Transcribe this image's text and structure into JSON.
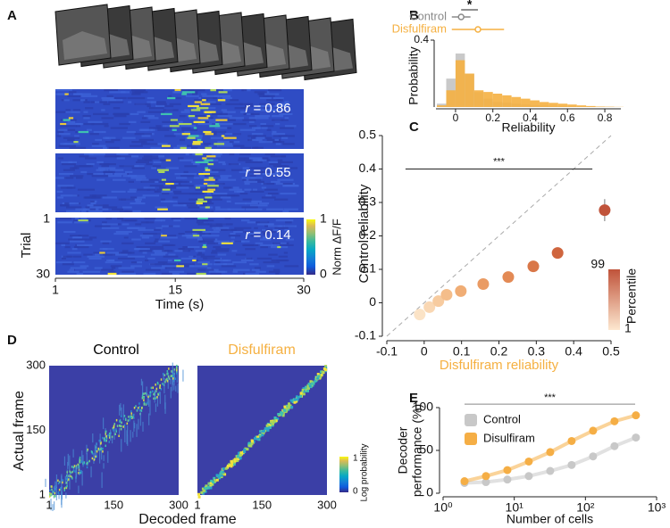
{
  "panel_labels": [
    "A",
    "B",
    "C",
    "D",
    "E"
  ],
  "panel_a": {
    "r_labels": [
      {
        "symbol": "r",
        "text": "= 0.86"
      },
      {
        "symbol": "r",
        "text": "= 0.55"
      },
      {
        "symbol": "r",
        "text": "= 0.14"
      }
    ],
    "ylabel": "Trial",
    "ylim": [
      1,
      30
    ],
    "yticks": [
      1,
      30
    ],
    "xlabel": "Time (s)",
    "xlim": [
      1,
      30
    ],
    "xticks": [
      1,
      15,
      30
    ],
    "colorbar_label": "Norm ΔF/F",
    "colorbar_ticks": [
      0,
      1
    ]
  },
  "panel_d": {
    "titles": [
      {
        "text": "Control",
        "color": "#000000"
      },
      {
        "text": "Disfulfiram",
        "color": "#f5b041"
      }
    ],
    "ylabel": "Actual frame",
    "xlabel": "Decoded frame",
    "lim": [
      1,
      300
    ],
    "ticks": [
      1,
      150,
      300
    ],
    "colorbar_label": "Log probability",
    "colorbar_ticks": [
      0,
      1
    ]
  },
  "chart_data": [
    {
      "type": "histogram",
      "xlabel": "Reliability",
      "ylabel": "Probability",
      "xlim": [
        -0.105,
        0.886
      ],
      "xticks": [
        0,
        0.2,
        0.4,
        0.6,
        0.8
      ],
      "ylim": [
        0,
        0.4
      ],
      "yticks": [
        0.4
      ],
      "bins": [
        -0.1,
        -0.05,
        0,
        0.05,
        0.1,
        0.15,
        0.2,
        0.25,
        0.3,
        0.35,
        0.4,
        0.45,
        0.5,
        0.55,
        0.6,
        0.65,
        0.7,
        0.75,
        0.8,
        0.85,
        0.9
      ],
      "series": [
        {
          "name": "Control",
          "color": "#c9c9c9",
          "legend_color": "#8a8a8a",
          "mean": 0.03,
          "error": 0.05,
          "values": [
            0.02,
            0.17,
            0.32,
            0.2,
            0.09,
            0.05,
            0.03,
            0.025,
            0.02,
            0.015,
            0.012,
            0.01,
            0.008,
            0.006,
            0.004,
            0.003,
            0.002,
            0.001,
            0.001,
            0
          ]
        },
        {
          "name": "Disfulfiram",
          "color": "#f5b041",
          "legend_color": "#f5b041",
          "mean": 0.12,
          "error": 0.14,
          "values": [
            0.01,
            0.1,
            0.28,
            0.2,
            0.1,
            0.09,
            0.08,
            0.07,
            0.06,
            0.05,
            0.04,
            0.03,
            0.025,
            0.02,
            0.015,
            0.01,
            0.006,
            0.003,
            0.002,
            0.001
          ]
        }
      ],
      "significance": "*"
    },
    {
      "type": "scatter",
      "xlabel": "Disfulfiram reliability",
      "xlabel_color": "#f5b041",
      "ylabel": "Control reliability",
      "xlim": [
        -0.1,
        0.5
      ],
      "xticks": [
        -0.1,
        0,
        0.1,
        0.2,
        0.3,
        0.4,
        0.5
      ],
      "ylim": [
        -0.1,
        0.5
      ],
      "yticks": [
        -0.1,
        0,
        0.1,
        0.2,
        0.3,
        0.4,
        0.5
      ],
      "x": [
        -0.012,
        0.014,
        0.038,
        0.06,
        0.098,
        0.158,
        0.225,
        0.292,
        0.357,
        0.483
      ],
      "y": [
        -0.035,
        -0.013,
        0.005,
        0.024,
        0.035,
        0.056,
        0.077,
        0.109,
        0.149,
        0.277
      ],
      "x_errors": [
        null,
        null,
        null,
        null,
        null,
        null,
        null,
        null,
        null,
        0.01
      ],
      "y_errors": [
        null,
        null,
        null,
        null,
        null,
        null,
        null,
        null,
        null,
        0.033
      ],
      "colors": [
        "#fbe3c6",
        "#f9d7b3",
        "#f7cb9f",
        "#f4bd8a",
        "#f0ad75",
        "#ea9b63",
        "#e38a55",
        "#d97748",
        "#cf653e",
        "#c0533a"
      ],
      "colorbar_label": "Percentile",
      "colorbar_ticks": [
        1,
        99
      ],
      "significance": {
        "label": "***",
        "x": [
          -0.05,
          0.45
        ],
        "y": 0.4
      }
    },
    {
      "type": "line",
      "xlabel": "Number of cells",
      "ylabel": [
        "Decoder",
        "performance (%)"
      ],
      "xlog": true,
      "xlim": [
        1,
        1000
      ],
      "xticks": [
        {
          "value": 1,
          "label": "10⁰"
        },
        {
          "value": 10,
          "label": "10¹"
        },
        {
          "value": 100,
          "label": "10²"
        },
        {
          "value": 1000,
          "label": "10³"
        }
      ],
      "ylim": [
        0,
        100
      ],
      "yticks": [
        0,
        50,
        100
      ],
      "x": [
        2,
        4,
        8,
        16,
        32,
        64,
        128,
        256,
        512
      ],
      "series": [
        {
          "name": "Control",
          "color": "#c8c8c8",
          "values": [
            12,
            13,
            16,
            20,
            26,
            33,
            43,
            55,
            65
          ],
          "errors": [
            null,
            null,
            null,
            null,
            null,
            null,
            null,
            null,
            4
          ]
        },
        {
          "name": "Disulfiram",
          "color": "#f5ae45",
          "values": [
            14,
            20,
            27,
            37,
            48,
            61,
            73,
            84,
            91
          ],
          "errors": [
            null,
            null,
            null,
            null,
            null,
            null,
            null,
            null,
            null
          ]
        }
      ],
      "significance": {
        "label": "***",
        "x": [
          2,
          500
        ],
        "y": 104
      }
    }
  ]
}
